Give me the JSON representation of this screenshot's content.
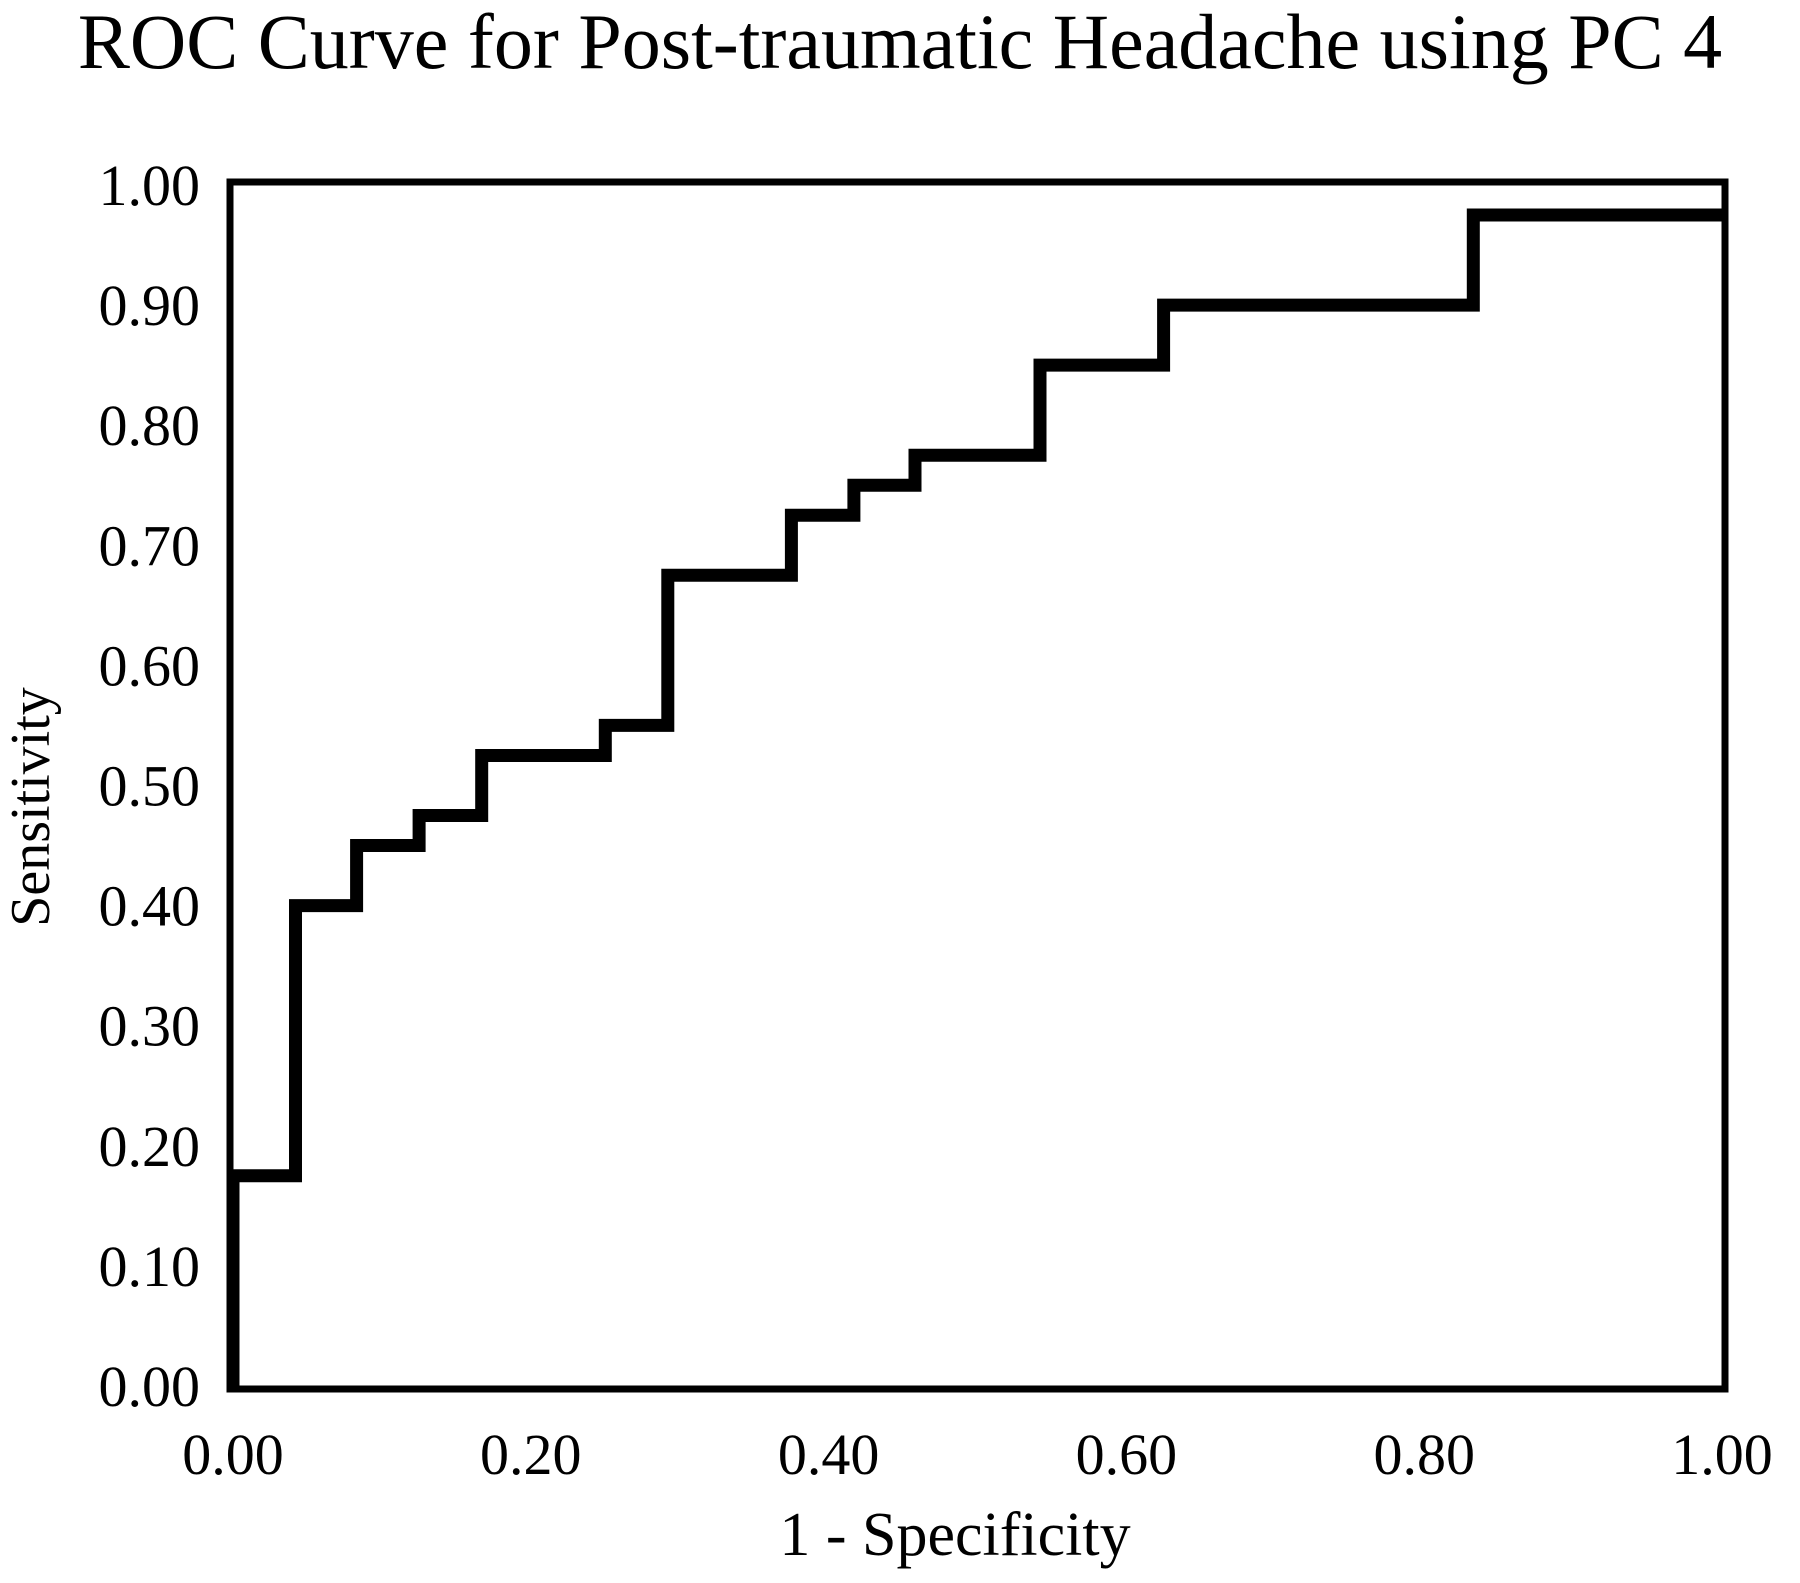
{
  "chart_data": {
    "type": "line",
    "title": "ROC Curve for Post-traumatic Headache using PC 4",
    "xlabel": "1 - Specificity",
    "ylabel": "Sensitivity",
    "xlim": [
      0,
      1
    ],
    "ylim": [
      0,
      1
    ],
    "x_ticks": [
      "0.00",
      "0.20",
      "0.40",
      "0.60",
      "0.80",
      "1.00"
    ],
    "y_ticks": [
      "0.00",
      "0.10",
      "0.20",
      "0.30",
      "0.40",
      "0.50",
      "0.60",
      "0.70",
      "0.80",
      "0.90",
      "1.00"
    ],
    "y_tick_values": [
      0,
      0.1,
      0.2,
      0.3,
      0.4,
      0.5,
      0.6,
      0.7,
      0.8,
      0.9,
      1.0
    ],
    "x_tick_values": [
      0,
      0.2,
      0.4,
      0.6,
      0.8,
      1.0
    ],
    "grid": false,
    "series": [
      {
        "color": "#000000",
        "x": [
          0,
          0,
          0.042,
          0.042,
          0.083,
          0.083,
          0.125,
          0.125,
          0.167,
          0.167,
          0.25,
          0.25,
          0.292,
          0.292,
          0.375,
          0.375,
          0.417,
          0.417,
          0.458,
          0.458,
          0.542,
          0.542,
          0.625,
          0.625,
          0.833,
          0.833,
          1.0
        ],
        "y": [
          0,
          0.175,
          0.175,
          0.4,
          0.4,
          0.45,
          0.45,
          0.475,
          0.475,
          0.525,
          0.525,
          0.55,
          0.55,
          0.675,
          0.675,
          0.725,
          0.725,
          0.75,
          0.75,
          0.775,
          0.775,
          0.85,
          0.85,
          0.9,
          0.9,
          0.975,
          0.975
        ]
      }
    ]
  }
}
